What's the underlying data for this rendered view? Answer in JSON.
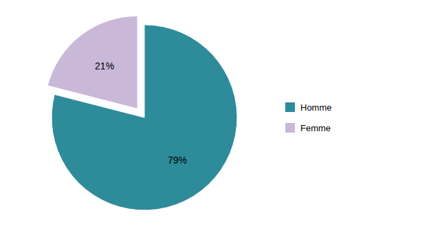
{
  "chart_data": {
    "type": "pie",
    "categories": [
      "Homme",
      "Femme"
    ],
    "values": [
      79,
      21
    ],
    "value_labels": [
      "79%",
      "21%"
    ],
    "colors": [
      "#2e8b9a",
      "#c9b8d8"
    ],
    "data_labels": true,
    "legend": "right"
  }
}
